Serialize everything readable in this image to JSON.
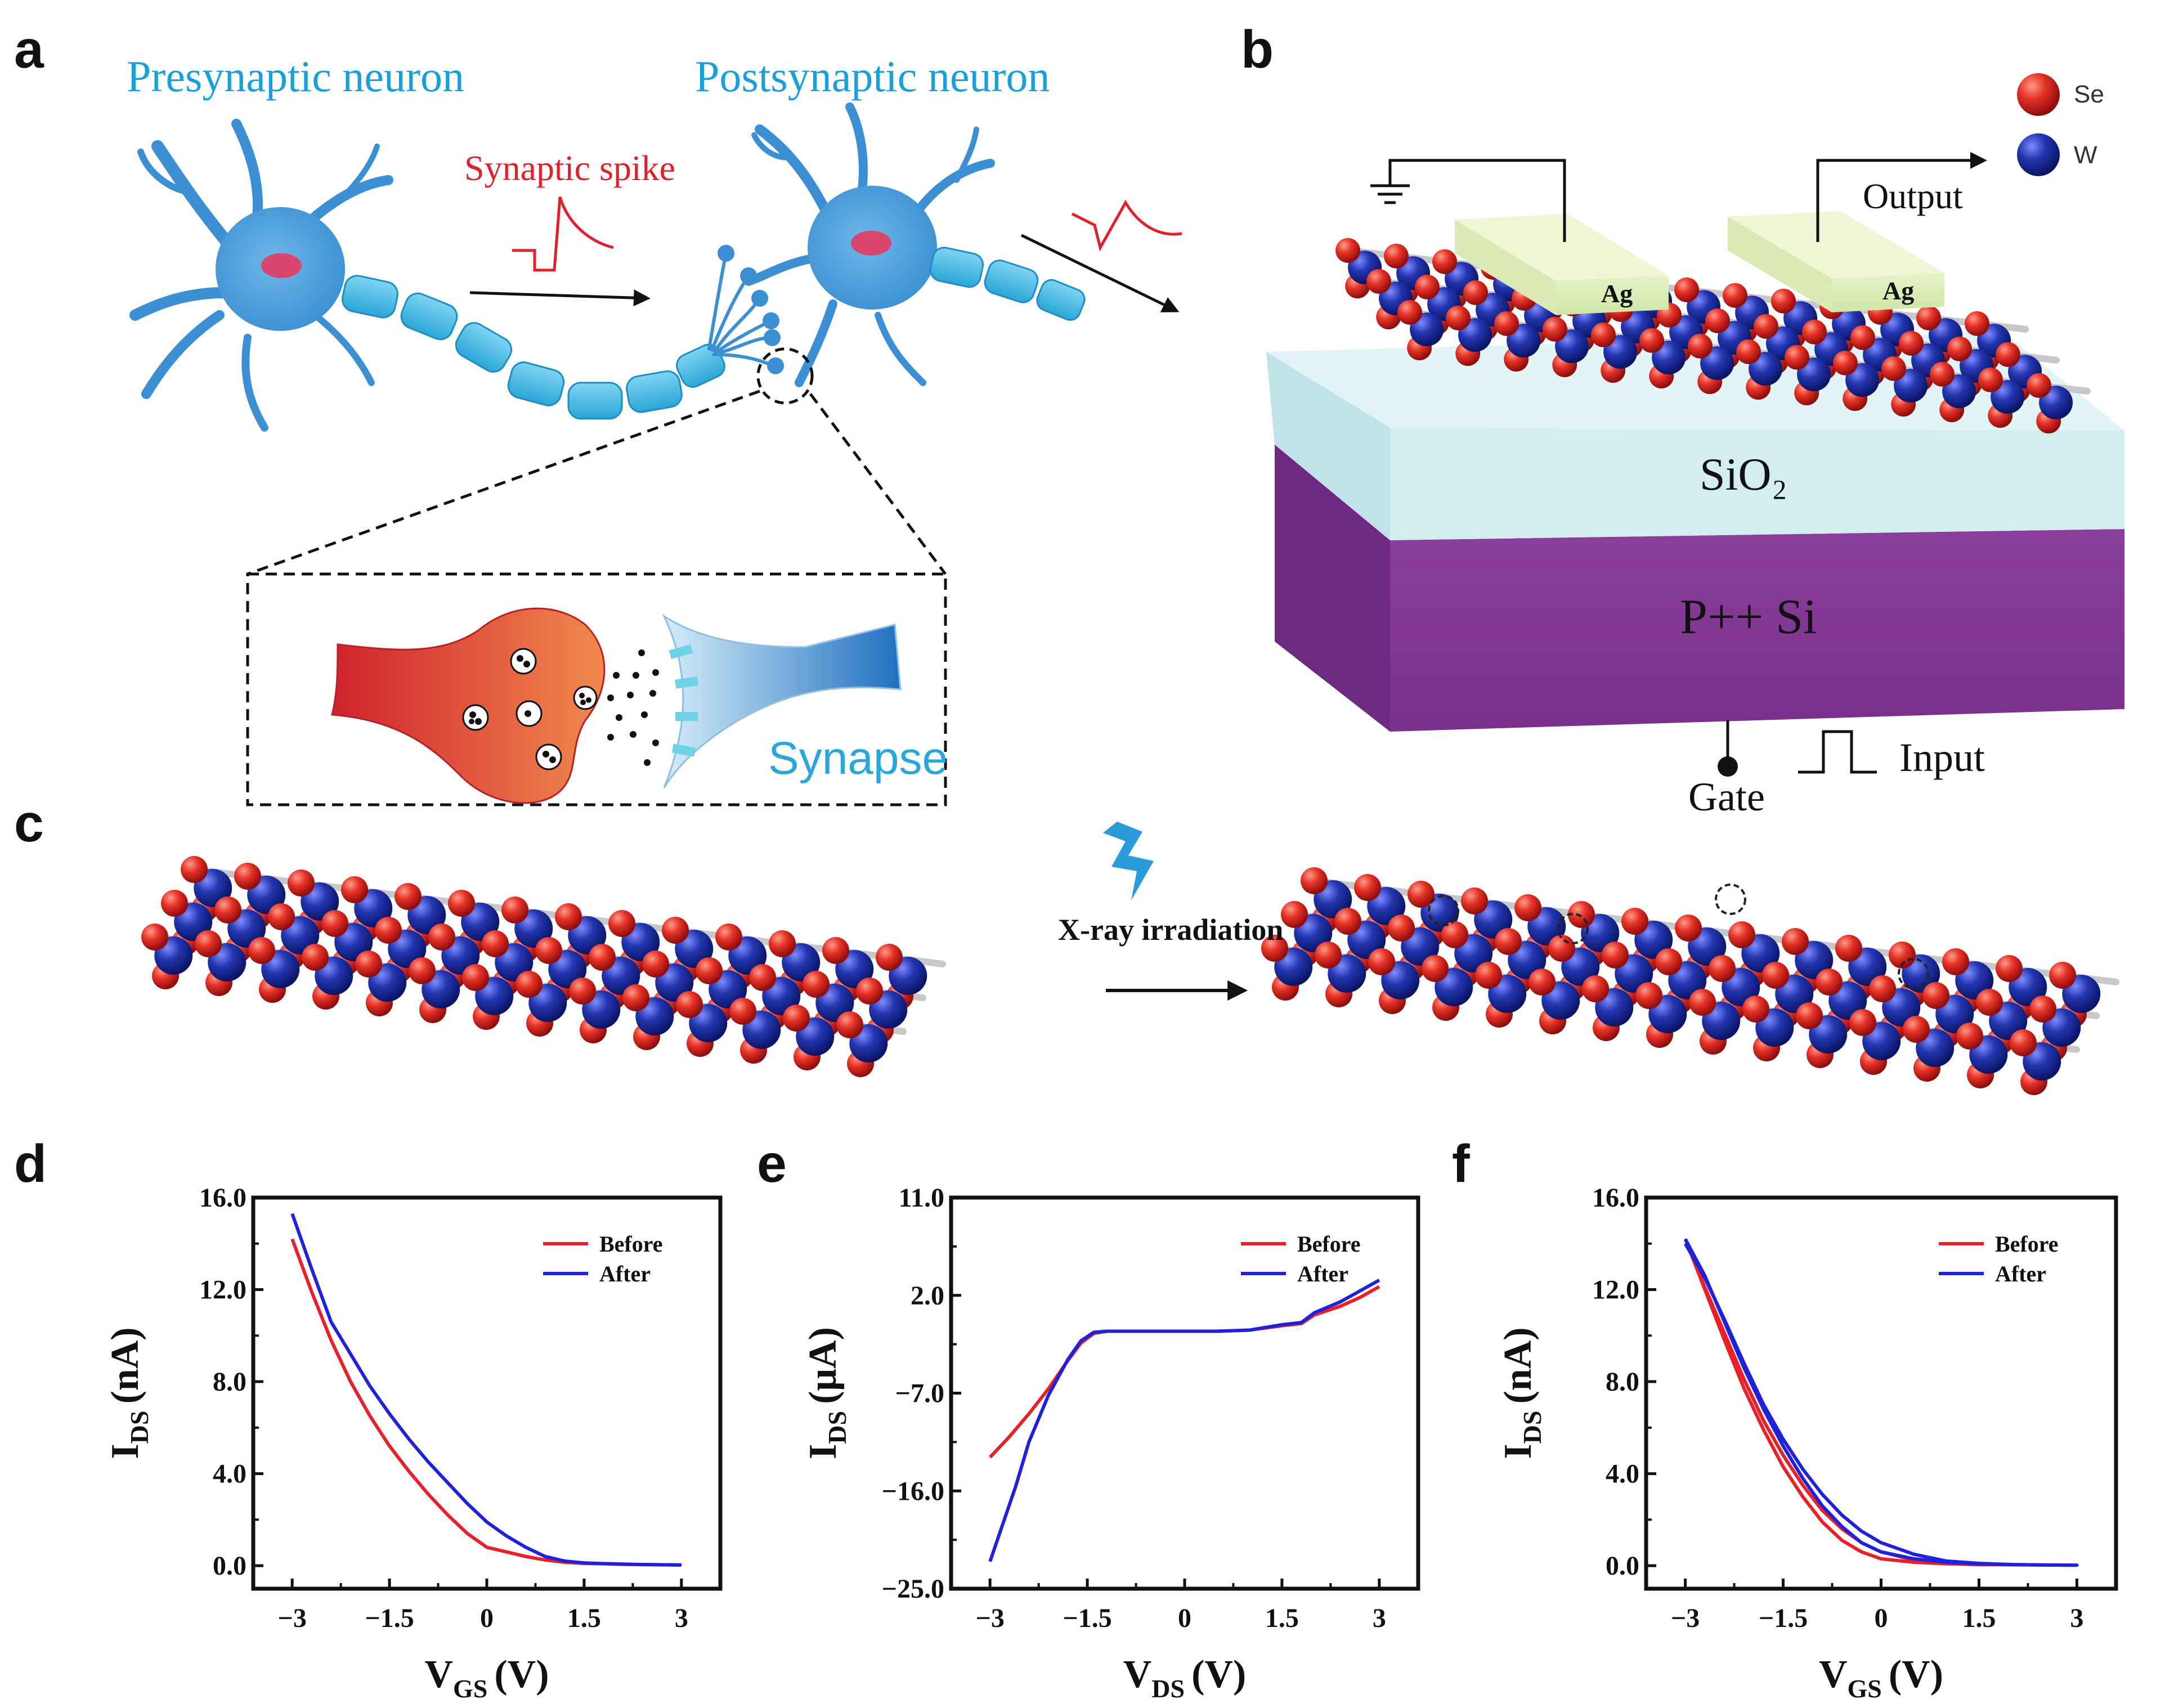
{
  "panels": {
    "a": {
      "letter": "a",
      "presynaptic_label": "Presynaptic neuron",
      "postsynaptic_label": "Postsynaptic neuron",
      "spike_label": "Synaptic spike",
      "synapse_label": "Synapse"
    },
    "b": {
      "letter": "b",
      "legend": [
        {
          "atom": "Se",
          "color": "#e02424"
        },
        {
          "atom": "W",
          "color": "#1a2b9c"
        }
      ],
      "output_label": "Output",
      "electrode_left": "Ag",
      "electrode_right": "Ag",
      "oxide_label": "SiO₂",
      "substrate_label": "P++ Si",
      "gate_label": "Gate",
      "input_label": "Input"
    },
    "c": {
      "letter": "c",
      "process_label": "X-ray irradiation"
    }
  },
  "chart_data": [
    {
      "id": "d",
      "letter": "d",
      "type": "line",
      "xlabel_main": "V",
      "xlabel_sub": "GS",
      "xlabel_unit": "(V)",
      "ylabel_main": "I",
      "ylabel_sub": "DS",
      "ylabel_unit": "(nA)",
      "xlim": [
        -3.6,
        3.6
      ],
      "ylim": [
        -1.0,
        16.0
      ],
      "xticks": [
        -3,
        -1.5,
        0,
        1.5,
        3
      ],
      "xtick_labels": [
        "-3",
        "-1.5",
        "0",
        "1.5",
        "3"
      ],
      "yticks": [
        0.0,
        4.0,
        8.0,
        12.0,
        16.0
      ],
      "ytick_labels": [
        "0.0",
        "4.0",
        "8.0",
        "12.0",
        "16.0"
      ],
      "series": [
        {
          "name": "Before",
          "color": "#e8202a",
          "x": [
            -3,
            -2.7,
            -2.4,
            -2.1,
            -1.8,
            -1.5,
            -1.2,
            -0.9,
            -0.6,
            -0.3,
            0,
            0.3,
            0.6,
            0.9,
            1.2,
            1.5,
            1.8,
            2.1,
            2.4,
            2.7,
            3
          ],
          "y": [
            14.2,
            11.9,
            9.8,
            8.0,
            6.5,
            5.2,
            4.1,
            3.1,
            2.2,
            1.4,
            0.8,
            0.6,
            0.4,
            0.25,
            0.15,
            0.1,
            0.08,
            0.06,
            0.05,
            0.04,
            0.03
          ]
        },
        {
          "name": "After",
          "color": "#1f22d8",
          "x": [
            -3,
            -2.7,
            -2.4,
            -2.1,
            -1.8,
            -1.5,
            -1.2,
            -0.9,
            -0.6,
            -0.3,
            0,
            0.3,
            0.6,
            0.9,
            1.2,
            1.5,
            1.8,
            2.1,
            2.4,
            2.7,
            3
          ],
          "y": [
            15.3,
            12.9,
            10.6,
            9.2,
            7.8,
            6.6,
            5.5,
            4.5,
            3.6,
            2.7,
            1.9,
            1.3,
            0.8,
            0.4,
            0.2,
            0.12,
            0.09,
            0.07,
            0.05,
            0.04,
            0.03
          ]
        }
      ]
    },
    {
      "id": "e",
      "letter": "e",
      "type": "line",
      "xlabel_main": "V",
      "xlabel_sub": "DS",
      "xlabel_unit": "(V)",
      "ylabel_main": "I",
      "ylabel_sub": "DS",
      "ylabel_unit": "(μA)",
      "xlim": [
        -3.6,
        3.6
      ],
      "ylim": [
        -25.0,
        11.0
      ],
      "xticks": [
        -3,
        -1.5,
        0,
        1.5,
        3
      ],
      "xtick_labels": [
        "-3",
        "-1.5",
        "0",
        "1.5",
        "3"
      ],
      "yticks": [
        -25.0,
        -16.0,
        -7.0,
        2.0,
        11.0
      ],
      "ytick_labels": [
        "-25.0",
        "-16.0",
        "-7.0",
        "2.0",
        "11.0"
      ],
      "series": [
        {
          "name": "Before",
          "color": "#e8202a",
          "x": [
            -3,
            -2.7,
            -2.4,
            -2.1,
            -1.8,
            -1.6,
            -1.4,
            -1.2,
            -1.0,
            -0.5,
            0,
            0.5,
            1.0,
            1.5,
            1.8,
            2.0,
            2.4,
            2.7,
            3
          ],
          "y": [
            -12.9,
            -11.0,
            -8.9,
            -6.6,
            -4.0,
            -2.4,
            -1.5,
            -1.3,
            -1.3,
            -1.3,
            -1.3,
            -1.3,
            -1.2,
            -0.8,
            -0.6,
            0.2,
            1.0,
            1.8,
            2.8
          ]
        },
        {
          "name": "After",
          "color": "#1f22d8",
          "x": [
            -3,
            -2.8,
            -2.6,
            -2.4,
            -2.1,
            -1.8,
            -1.6,
            -1.4,
            -1.2,
            -1.0,
            -0.5,
            0,
            0.5,
            1.0,
            1.5,
            1.8,
            2.0,
            2.4,
            2.7,
            3
          ],
          "y": [
            -22.5,
            -19.0,
            -15.5,
            -11.5,
            -7.2,
            -3.9,
            -2.2,
            -1.4,
            -1.3,
            -1.3,
            -1.3,
            -1.3,
            -1.3,
            -1.2,
            -0.7,
            -0.5,
            0.4,
            1.4,
            2.4,
            3.4
          ]
        }
      ]
    },
    {
      "id": "f",
      "letter": "f",
      "type": "line",
      "xlabel_main": "V",
      "xlabel_sub": "GS",
      "xlabel_unit": "(V)",
      "ylabel_main": "I",
      "ylabel_sub": "DS",
      "ylabel_unit": "(nA)",
      "xlim": [
        -3.6,
        3.6
      ],
      "ylim": [
        -1.0,
        16.0
      ],
      "xticks": [
        -3,
        -1.5,
        0,
        1.5,
        3
      ],
      "xtick_labels": [
        "-3",
        "-1.5",
        "0",
        "1.5",
        "3"
      ],
      "yticks": [
        0.0,
        4.0,
        8.0,
        12.0,
        16.0
      ],
      "ytick_labels": [
        "0.0",
        "4.0",
        "8.0",
        "12.0",
        "16.0"
      ],
      "series": [
        {
          "name": "Before",
          "color": "#e8202a",
          "x": [
            -3,
            -2.7,
            -2.4,
            -2.1,
            -1.8,
            -1.5,
            -1.2,
            -0.9,
            -0.6,
            -0.3,
            0,
            0.5,
            1.0,
            1.5,
            2.0,
            2.5,
            3,
            2.5,
            2.0,
            1.5,
            1.0,
            0.5,
            0,
            -0.3,
            -0.6,
            -0.9,
            -1.2,
            -1.5,
            -1.8,
            -2.1,
            -2.4,
            -2.7,
            -3
          ],
          "y": [
            14.2,
            12.0,
            9.8,
            7.7,
            5.9,
            4.3,
            3.0,
            1.9,
            1.1,
            0.6,
            0.3,
            0.15,
            0.08,
            0.05,
            0.04,
            0.03,
            0.02,
            0.03,
            0.05,
            0.08,
            0.12,
            0.25,
            0.6,
            1.0,
            1.6,
            2.4,
            3.5,
            4.8,
            6.3,
            8.1,
            10.1,
            12.1,
            14.2
          ]
        },
        {
          "name": "After",
          "color": "#1f22d8",
          "x": [
            -3,
            -2.7,
            -2.4,
            -2.1,
            -1.8,
            -1.5,
            -1.2,
            -0.9,
            -0.6,
            -0.3,
            0,
            0.5,
            1.0,
            1.5,
            2.0,
            2.5,
            3,
            2.5,
            2.0,
            1.5,
            1.0,
            0.5,
            0,
            -0.3,
            -0.6,
            -0.9,
            -1.2,
            -1.5,
            -1.8,
            -2.1,
            -2.4,
            -2.7,
            -3
          ],
          "y": [
            14.2,
            12.6,
            10.6,
            8.6,
            6.8,
            5.2,
            3.8,
            2.6,
            1.7,
            1.0,
            0.6,
            0.3,
            0.15,
            0.08,
            0.05,
            0.03,
            0.02,
            0.03,
            0.05,
            0.1,
            0.2,
            0.5,
            1.0,
            1.5,
            2.2,
            3.1,
            4.2,
            5.5,
            7.0,
            8.8,
            10.7,
            12.5,
            14.0
          ]
        }
      ]
    }
  ]
}
